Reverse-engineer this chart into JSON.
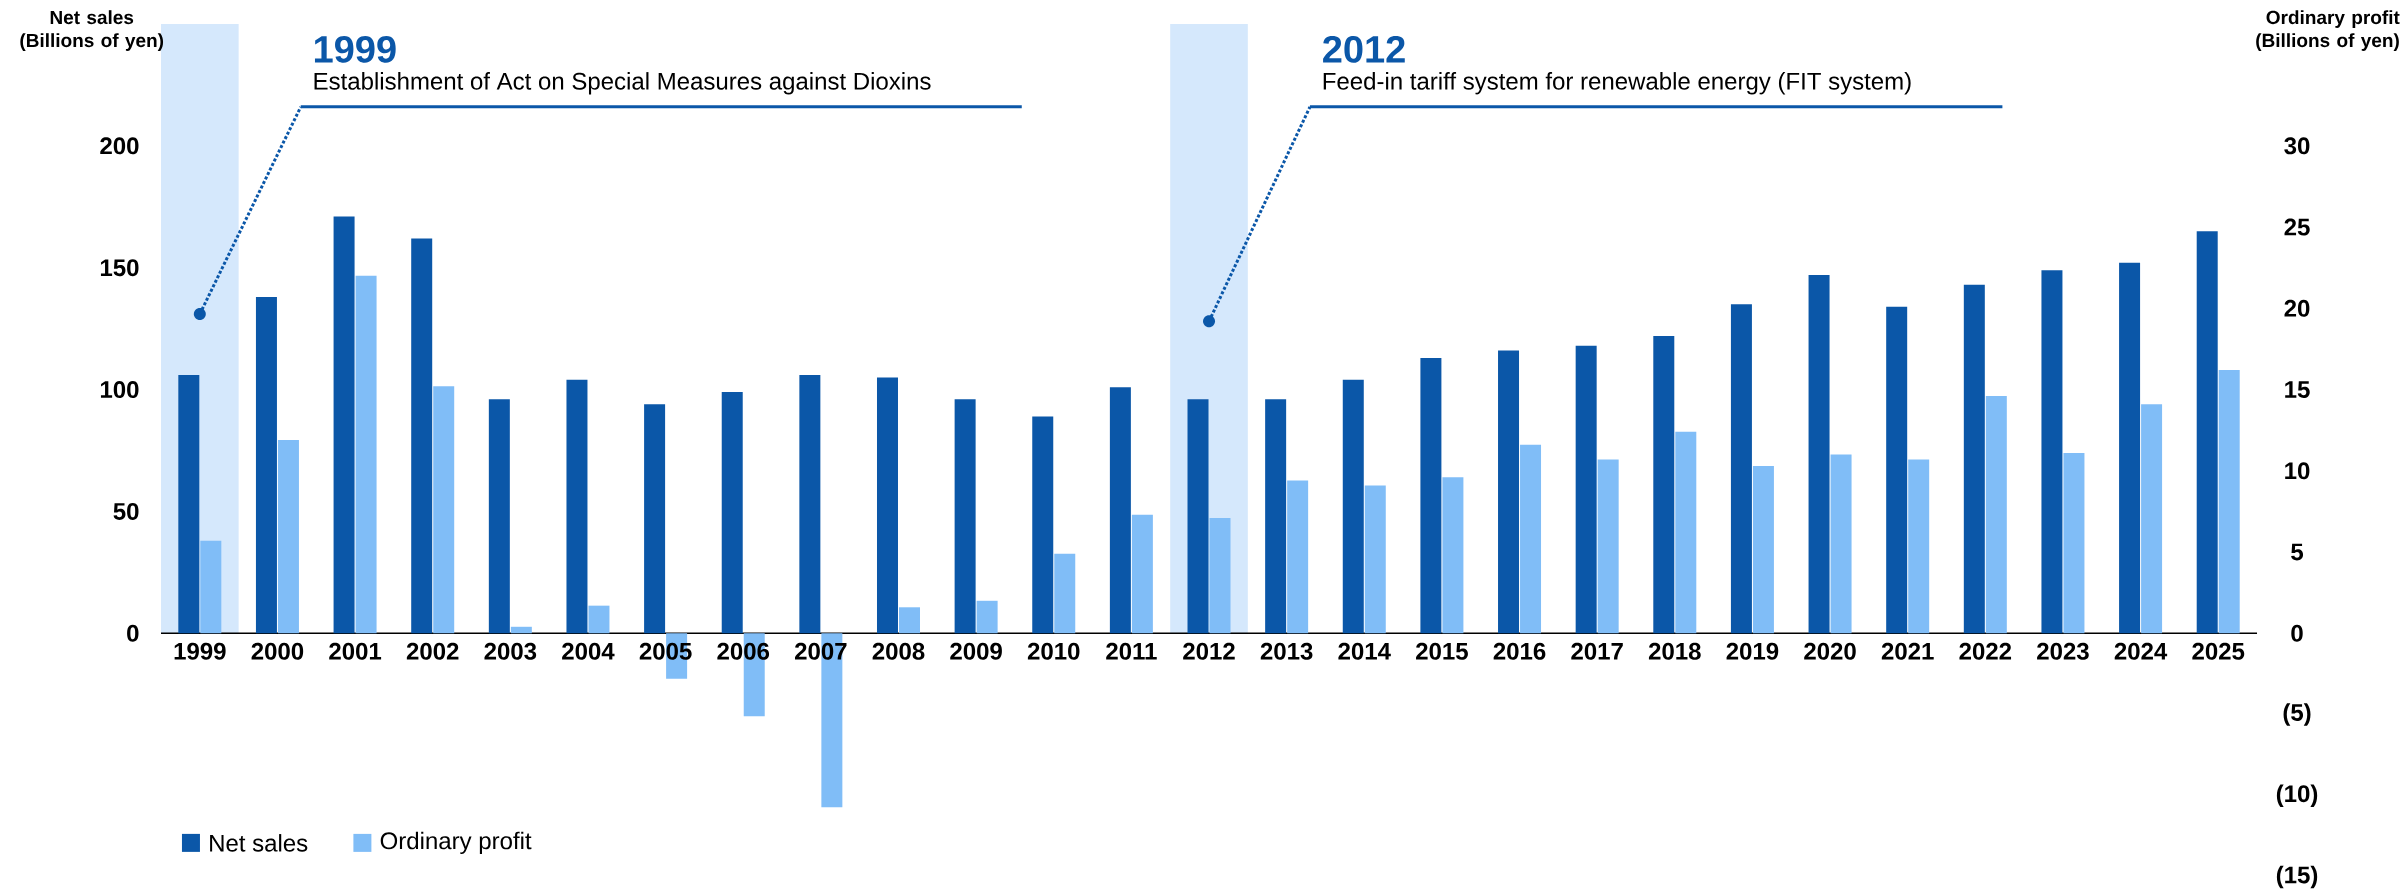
{
  "chart_data": {
    "type": "bar",
    "categories": [
      "1999",
      "2000",
      "2001",
      "2002",
      "2003",
      "2004",
      "2005",
      "2006",
      "2007",
      "2008",
      "2009",
      "2010",
      "2011",
      "2012",
      "2013",
      "2014",
      "2015",
      "2016",
      "2017",
      "2018",
      "2019",
      "2020",
      "2021",
      "2022",
      "2023",
      "2024",
      "2025"
    ],
    "series": [
      {
        "name": "Net sales",
        "color": "#0b57a8",
        "values": [
          106,
          138,
          171,
          162,
          96,
          104,
          94,
          99,
          106,
          105,
          96,
          89,
          101,
          96,
          96,
          104,
          113,
          116,
          118,
          122,
          135,
          147,
          134,
          143,
          149,
          152,
          165
        ]
      },
      {
        "name": "Ordinary profit",
        "color": "#80bdf7",
        "axis": "y2",
        "values": [
          5.7,
          11.9,
          22.0,
          15.2,
          0.4,
          1.7,
          -2.8,
          -5.1,
          -10.7,
          1.6,
          2.0,
          4.9,
          7.3,
          7.1,
          9.4,
          9.1,
          9.6,
          11.6,
          10.7,
          12.4,
          10.3,
          11.0,
          10.7,
          14.6,
          11.1,
          14.1,
          16.2
        ]
      }
    ],
    "ylabel": "Net sales (Billions of yen)",
    "y2label": "Ordinary profit (Billions of yen)",
    "ylim": [
      0,
      250
    ],
    "yticks": [
      0,
      50,
      100,
      150,
      200
    ],
    "y2lim": [
      -15,
      37.5
    ],
    "y2ticks": [
      {
        "value": -15,
        "label": "(15)"
      },
      {
        "value": -10,
        "label": "(10)"
      },
      {
        "value": -5,
        "label": "(5)"
      },
      0,
      5,
      10,
      15,
      20,
      25,
      30
    ],
    "legend": "bottom left",
    "bands": [
      {
        "axis": "x",
        "from": "1999",
        "to": "1999",
        "label": "1999",
        "color": "#d5e8fc"
      },
      {
        "axis": "x",
        "from": "2012",
        "to": "2012",
        "label": "2012",
        "color": "#d5e8fc"
      }
    ],
    "annotations": [
      {
        "text": "Establishment of Act on Special Measures against Dioxins",
        "x": "1999",
        "y": 131
      },
      {
        "text": "Feed-in tariff system for renewable energy (FIT system)",
        "x": "2012",
        "y": 128
      }
    ]
  }
}
